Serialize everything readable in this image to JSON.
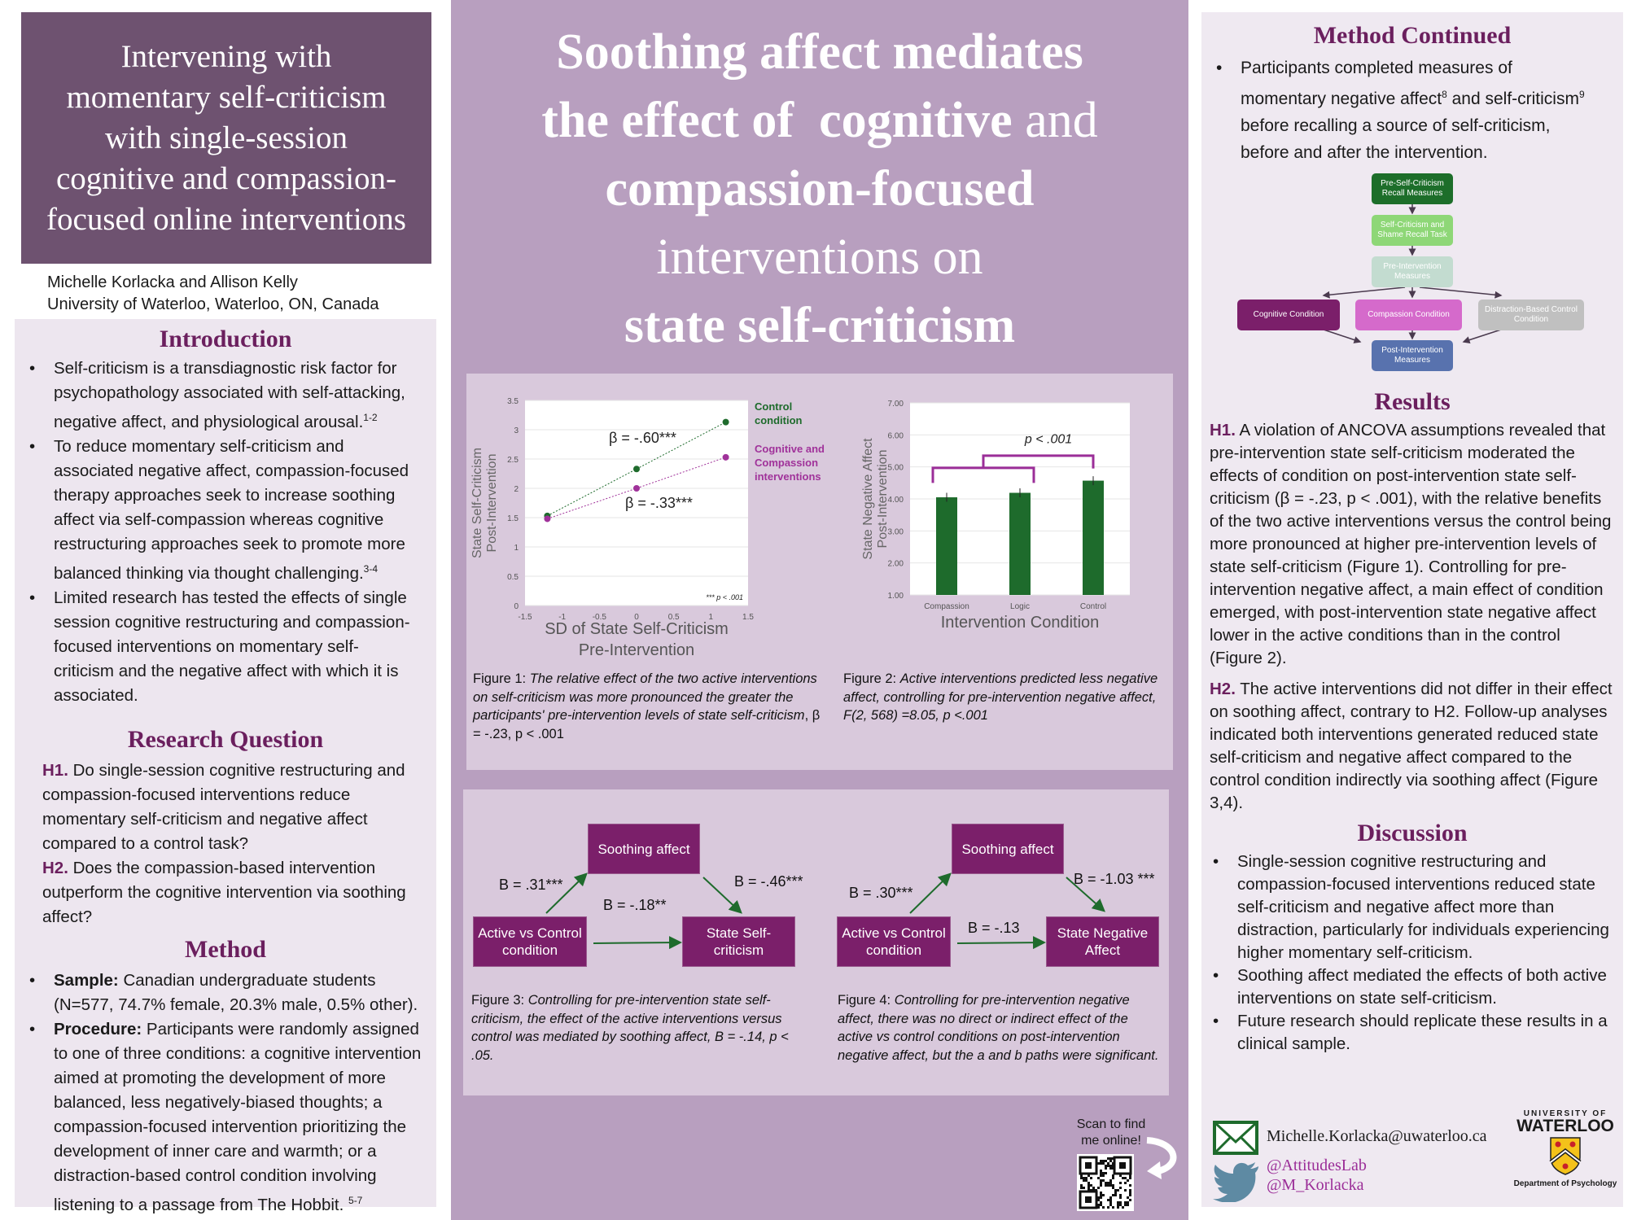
{
  "left": {
    "title": [
      "Intervening with",
      "momentary self-criticism",
      "with single-session",
      "cognitive and compassion-",
      "focused online interventions"
    ],
    "authors": "Michelle Korlacka and Allison Kelly",
    "affiliation": "University of Waterloo, Waterloo, ON, Canada",
    "introduction": {
      "heading": "Introduction",
      "bullets": [
        {
          "text": "Self-criticism is a transdiagnostic risk factor for psychopathology associated with self-attacking, negative affect, and physiological arousal.",
          "sup": "1-2"
        },
        {
          "text": "To reduce momentary self-criticism and associated negative affect, compassion-focused therapy approaches seek to increase soothing affect via self-compassion whereas cognitive restructuring approaches seek to promote more balanced thinking via thought challenging.",
          "sup": "3-4"
        },
        {
          "text": "Limited research has tested the effects of single session cognitive restructuring and compassion-focused interventions on momentary self-criticism and the negative affect with which it is associated.",
          "sup": ""
        }
      ]
    },
    "research_question": {
      "heading": "Research Question",
      "h1_label": "H1.",
      "h1": " Do single-session cognitive restructuring and compassion-focused interventions reduce momentary self-criticism and negative affect compared to a control task?",
      "h2_label": "H2.",
      "h2": " Does the compassion-based intervention outperform the cognitive intervention via soothing affect?"
    },
    "method": {
      "heading": "Method",
      "sample_label": "Sample:",
      "sample": " Canadian undergraduate students (N=577, 74.7% female, 20.3% male, 0.5% other).",
      "procedure_label": "Procedure:",
      "procedure": " Participants were randomly assigned to one of three conditions: a cognitive intervention aimed at promoting the development of more balanced, less negatively-biased thoughts; a compassion-focused intervention prioritizing the development of inner care and warmth; or a distraction-based control condition involving listening to a passage from The Hobbit.",
      "procedure_sup": "5-7"
    }
  },
  "center": {
    "title": {
      "l1": "Soothing affect mediates",
      "l2a": "the effect of  ",
      "l2b": "cognitive",
      "l2c": " and",
      "l3": "compassion-focused",
      "l4": "interventions on",
      "l5": "state self-criticism"
    },
    "figure1": {
      "caption_label": "Figure 1: ",
      "caption": "The relative effect of the two active interventions on self-criticism was more pronounced the greater the participants' pre-intervention levels of state self-criticism",
      "caption_tail": ", β = -.23, p < .001"
    },
    "figure2": {
      "caption_label": "Figure 2: ",
      "caption": "Active interventions predicted less negative affect, controlling for pre-intervention negative affect, F(2, 568) =8.05, p <.001"
    },
    "figure3": {
      "mediator": "Soothing affect",
      "predictor": "Active vs Control condition",
      "outcome": "State Self-criticism",
      "a": "B = .31***",
      "b": "B =  -.46***",
      "c": "B = -.18**",
      "caption_label": "Figure 3: ",
      "caption": "Controlling for pre-intervention state self-criticism, the effect of the active interventions versus control was mediated by soothing affect, B = -.14, p < .05."
    },
    "figure4": {
      "mediator": "Soothing affect",
      "predictor": "Active vs Control condition",
      "outcome": "State Negative Affect",
      "a": "B =  .30***",
      "b": "B = -1.03 ***",
      "c": "B =  -.13",
      "caption_label": "Figure 4: ",
      "caption": "Controlling for pre-intervention negative affect, there was no direct or indirect effect of the active vs control conditions on post-intervention negative affect, but the a and b paths were significant."
    },
    "qr": {
      "text": "Scan to find me online!",
      "icon": "qr-code-icon"
    }
  },
  "chart_data": [
    {
      "type": "line",
      "ylabel": "State Self-Criticism Post-Intervention",
      "xlabel": "SD of State Self-Criticism Pre-Intervention",
      "xlim": [
        -1.5,
        1.5
      ],
      "ylim": [
        0,
        3.5
      ],
      "xticks": [
        "-1.5",
        "-1",
        "-0.5",
        "0",
        "0.5",
        "1",
        "1.5"
      ],
      "yticks": [
        "0",
        "0.5",
        "1",
        "1.5",
        "2",
        "2.5",
        "3",
        "3.5"
      ],
      "grid": true,
      "x": [
        -1.2,
        0,
        1.2
      ],
      "series": [
        {
          "name": "Control condition",
          "values": [
            1.53,
            2.33,
            3.13
          ],
          "color": "#1e6b2c",
          "label": "β = -.60***"
        },
        {
          "name": "Cognitive and Compassion interventions",
          "values": [
            1.48,
            2.0,
            2.53
          ],
          "color": "#a0329a",
          "label": "β = -.33***"
        }
      ],
      "legend_lines": [
        [
          "Control",
          "condition"
        ],
        [
          "Cognitive and",
          "Compassion",
          "interventions"
        ]
      ],
      "annotation": "*** p < .001",
      "legend": "right"
    },
    {
      "type": "bar",
      "ylabel": "State Negative Affect Post-Intervention",
      "xlabel": "Intervention Condition",
      "categories": [
        "Compassion",
        "Logic",
        "Control"
      ],
      "values": [
        4.05,
        4.19,
        4.57
      ],
      "errors": [
        0.14,
        0.14,
        0.14
      ],
      "ylim": [
        1,
        7
      ],
      "yticks": [
        "1.00",
        "2.00",
        "3.00",
        "4.00",
        "5.00",
        "6.00",
        "7.00"
      ],
      "grid": true,
      "bar_color": "#1e6b2c",
      "bracket_color": "#9b2e98",
      "annotation": "p < .001"
    }
  ],
  "right": {
    "method_continued": {
      "heading": "Method Continued",
      "t1": "Participants completed measures of momentary negative affect",
      "s1": "8",
      "t2": " and self-criticism",
      "s2": "9",
      "t3": " before recalling a source of self-criticism, before and after the intervention."
    },
    "flowchart": {
      "pre": "Pre-Self-Criticism Recall Measures",
      "recall": "Self-Criticism and Shame Recall Task",
      "preint": "Pre-Intervention Measures",
      "cog": "Cognitive Condition",
      "comp": "Compassion Condition",
      "ctrl": "Distraction-Based Control Condition",
      "post": "Post-Intervention Measures",
      "colors": {
        "pre": "#1d6e2a",
        "recall": "#8ed777",
        "preint": "#c3dcd0",
        "cog": "#7b1f6a",
        "comp": "#d56acb",
        "ctrl": "#c0c0c0",
        "post": "#5872ae"
      }
    },
    "results": {
      "heading": "Results",
      "h1_label": "H1.",
      "h1": " A violation of ANCOVA assumptions revealed that pre-intervention state self-criticism moderated the effects of condition on post-intervention state self-criticism (β = -.23, p < .001), with the relative benefits of the two active interventions versus the control being more pronounced at higher pre-intervention levels of state self-criticism (Figure 1). Controlling for pre-intervention negative affect, a main effect of condition emerged, with post-intervention state negative affect lower in the active conditions than in the control (Figure 2).",
      "h2_label": "H2.",
      "h2": " The active interventions did not differ in their effect on soothing affect, contrary to H2. Follow-up analyses indicated both interventions generated reduced state self-criticism and negative affect compared to the control condition indirectly via soothing affect (Figure 3,4)."
    },
    "discussion": {
      "heading": "Discussion",
      "bullets": [
        "Single-session cognitive restructuring and compassion-focused interventions reduced state self-criticism and negative affect more than distraction, particularly for individuals experiencing higher momentary self-criticism.",
        "Soothing affect mediated the effects of both active interventions on state self-criticism.",
        "Future research should replicate these results in a clinical sample."
      ]
    },
    "contact": {
      "email": "Michelle.Korlacka@uwaterloo.ca",
      "twitter1": "@AttitudesLab",
      "twitter2": "@M_Korlacka",
      "email_icon": "envelope-icon",
      "twitter_icon": "twitter-bird-icon"
    },
    "logo": {
      "line1": "UNIVERSITY OF",
      "line2": "WATERLOO",
      "dept": "Department of Psychology"
    }
  }
}
